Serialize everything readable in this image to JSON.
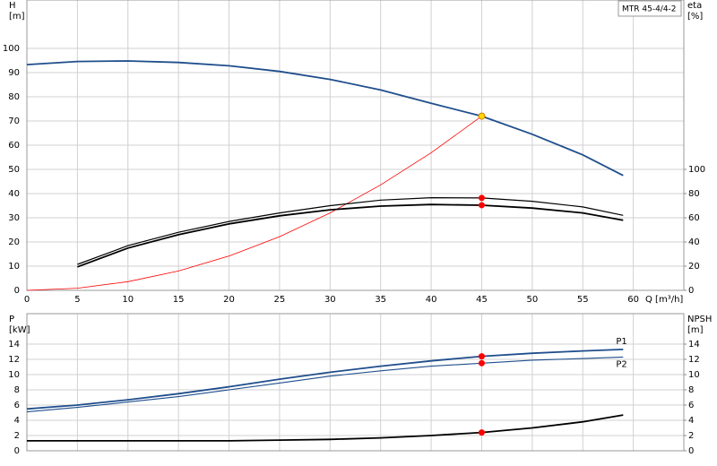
{
  "chart_data": [
    {
      "type": "line",
      "title": "MTR 45-4/4-2",
      "xlabel": "Q [m³/h]",
      "ylabel": "H",
      "yunit": "[m]",
      "y2label": "eta",
      "y2unit": "[%]",
      "x": [
        0,
        5,
        10,
        15,
        20,
        25,
        30,
        35,
        40,
        45,
        50,
        55,
        59
      ],
      "xlim": [
        0,
        65
      ],
      "xticks": [
        0,
        5,
        10,
        15,
        20,
        25,
        30,
        35,
        40,
        45,
        50,
        55,
        60
      ],
      "ylim": [
        0,
        120
      ],
      "yticks": [
        0,
        10,
        20,
        30,
        40,
        50,
        60,
        70,
        80,
        90,
        100
      ],
      "y2lim": [
        0,
        240
      ],
      "y2ticks": [
        0,
        20,
        40,
        60,
        80,
        100
      ],
      "grid": true,
      "show_xtick_labels": true,
      "series": [
        {
          "color": "#1f4e8c",
          "width": 1.8,
          "values": [
            93.3,
            94.6,
            94.8,
            94.2,
            92.8,
            90.5,
            87.2,
            82.8,
            77.3,
            72,
            64.5,
            56,
            47.5
          ]
        },
        {
          "color": "#ff0000",
          "width": 0.8,
          "values": [
            0,
            0.9,
            3.6,
            8,
            14.2,
            22.2,
            32,
            43.6,
            56.9,
            72,
            null,
            null,
            null
          ]
        },
        {
          "color": "#000000",
          "width": 1.2,
          "axis": "y2",
          "values": [
            null,
            21.5,
            37,
            48,
            57,
            64,
            70,
            74.6,
            76.6,
            76.4,
            73.6,
            69,
            62
          ]
        },
        {
          "color": "#000000",
          "width": 1.8,
          "axis": "y2",
          "values": [
            null,
            19.4,
            35,
            46,
            55,
            61.6,
            66.6,
            69.6,
            71,
            70.4,
            68,
            64,
            58
          ]
        }
      ],
      "points": [
        {
          "x": 45,
          "y": 72,
          "color": "#ffd700"
        },
        {
          "x": 45,
          "y": 76.4,
          "color": "#ff0000",
          "axis": "y2"
        },
        {
          "x": 45,
          "y": 70.4,
          "color": "#ff0000",
          "axis": "y2"
        }
      ]
    },
    {
      "type": "line",
      "ylabel": "P",
      "yunit": "[kW]",
      "y2label": "NPSH",
      "y2unit": "[m]",
      "x": [
        0,
        5,
        10,
        15,
        20,
        25,
        30,
        35,
        40,
        45,
        50,
        55,
        59
      ],
      "xlim": [
        0,
        65
      ],
      "xticks": [
        0,
        5,
        10,
        15,
        20,
        25,
        30,
        35,
        40,
        45,
        50,
        55,
        60
      ],
      "ylim": [
        0,
        18
      ],
      "yticks": [
        0,
        2,
        4,
        6,
        8,
        10,
        12,
        14
      ],
      "y2lim": [
        0,
        18
      ],
      "y2ticks": [
        0,
        2,
        4,
        6,
        8,
        10,
        12,
        14
      ],
      "grid": true,
      "show_xtick_labels": false,
      "series": [
        {
          "name": "P1",
          "color": "#1f4e8c",
          "width": 1.8,
          "values": [
            5.5,
            6.0,
            6.7,
            7.5,
            8.4,
            9.4,
            10.3,
            11.1,
            11.8,
            12.4,
            12.8,
            13.1,
            13.3
          ]
        },
        {
          "name": "P2",
          "color": "#1f4e8c",
          "width": 1.1,
          "values": [
            5.1,
            5.7,
            6.4,
            7.1,
            8.0,
            8.9,
            9.8,
            10.5,
            11.1,
            11.5,
            11.9,
            12.1,
            12.3
          ]
        },
        {
          "color": "#000000",
          "width": 1.8,
          "axis": "y2",
          "values": [
            1.3,
            1.3,
            1.3,
            1.3,
            1.3,
            1.4,
            1.5,
            1.7,
            2.0,
            2.4,
            3.0,
            3.8,
            4.7
          ]
        }
      ],
      "points": [
        {
          "x": 45,
          "y": 12.4,
          "color": "#ff0000"
        },
        {
          "x": 45,
          "y": 11.5,
          "color": "#ff0000"
        },
        {
          "x": 45,
          "y": 2.4,
          "color": "#ff0000",
          "axis": "y2"
        }
      ]
    }
  ]
}
